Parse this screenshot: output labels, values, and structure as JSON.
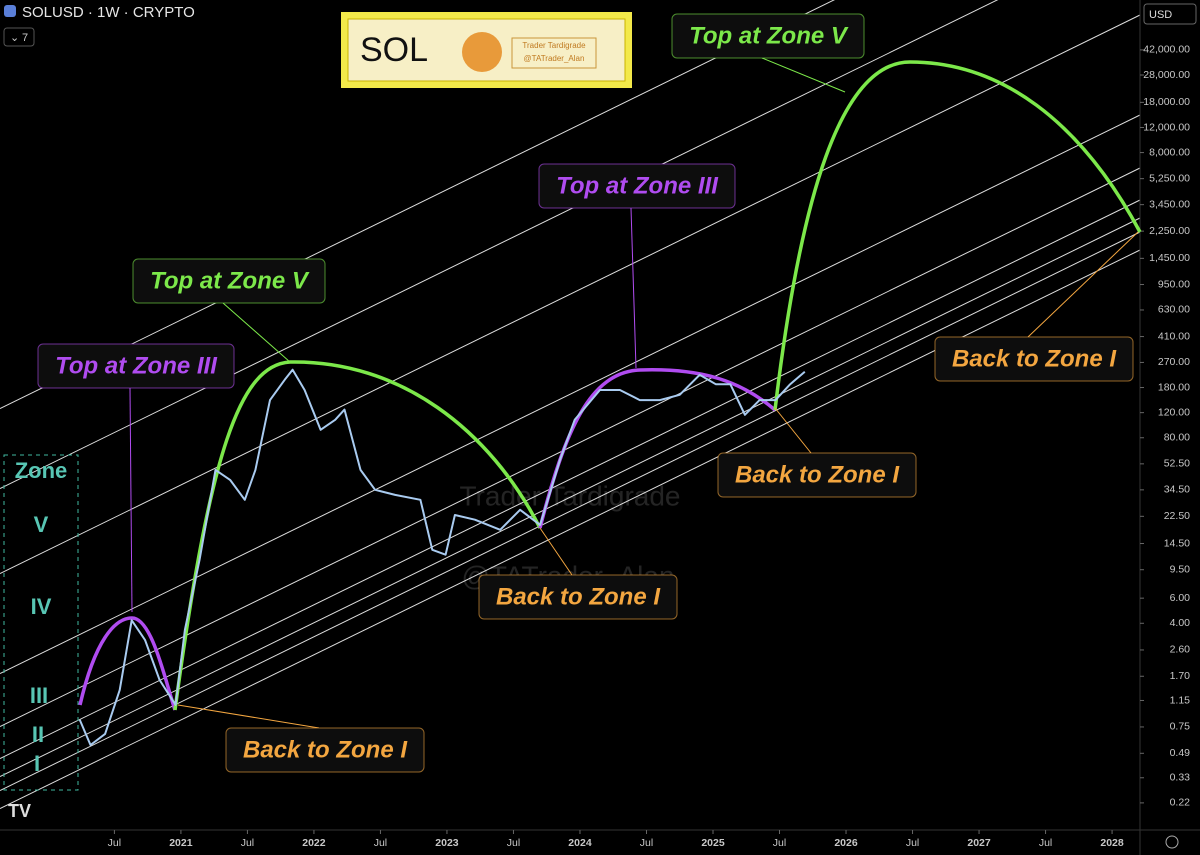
{
  "chart_data": {
    "type": "line",
    "header": {
      "symbol": "SOLUSD · 1W · CRYPTO",
      "indicator_count": "7",
      "currency": "USD"
    },
    "logo": {
      "symbol": "SOL",
      "author": "Trader Tardigrade",
      "handle": "@TATrader_Alan"
    },
    "watermark": [
      "Trader Tardigrade",
      "@TATrader_Alan"
    ],
    "zone_labels": [
      "Zone",
      "V",
      "IV",
      "III",
      "II",
      "I"
    ],
    "annotations": [
      {
        "text": "Top at Zone III",
        "color": "#b04cf0"
      },
      {
        "text": "Top at Zone V",
        "color": "#7ce84a"
      },
      {
        "text": "Back to Zone I",
        "color": "#f3a640"
      },
      {
        "text": "Back to Zone I",
        "color": "#f3a640"
      },
      {
        "text": "Top at Zone III",
        "color": "#b04cf0"
      },
      {
        "text": "Back to Zone I",
        "color": "#f3a640"
      },
      {
        "text": "Top at Zone V",
        "color": "#7ce84a"
      },
      {
        "text": "Back to Zone I",
        "color": "#f3a640"
      }
    ],
    "log_scale": true,
    "xlim": [
      2019.64,
      2028.21
    ],
    "ylim": [
      0.142,
      94000
    ],
    "xticks": [
      {
        "value": 2020.5,
        "label": "Jul"
      },
      2021,
      {
        "value": 2021.5,
        "label": "Jul"
      },
      2022,
      {
        "value": 2022.5,
        "label": "Jul"
      },
      2023,
      {
        "value": 2023.5,
        "label": "Jul"
      },
      2024,
      {
        "value": 2024.5,
        "label": "Jul"
      },
      2025,
      {
        "value": 2025.5,
        "label": "Jul"
      },
      2026,
      {
        "value": 2026.5,
        "label": "Jul"
      },
      2027,
      {
        "value": 2027.5,
        "label": "Jul"
      },
      2028
    ],
    "yticks": [
      {
        "value": 42000,
        "label": "42,000.00"
      },
      {
        "value": 28000,
        "label": "28,000.00"
      },
      {
        "value": 18000,
        "label": "18,000.00"
      },
      {
        "value": 12000,
        "label": "12,000.00"
      },
      {
        "value": 8000,
        "label": "8,000.00"
      },
      {
        "value": 5250,
        "label": "5,250.00"
      },
      {
        "value": 3450,
        "label": "3,450.00"
      },
      {
        "value": 2250,
        "label": "2,250.00"
      },
      {
        "value": 1450,
        "label": "1,450.00"
      },
      {
        "value": 950,
        "label": "950.00"
      },
      {
        "value": 630,
        "label": "630.00"
      },
      {
        "value": 410,
        "label": "410.00"
      },
      {
        "value": 270,
        "label": "270.00"
      },
      {
        "value": 180,
        "label": "180.00"
      },
      {
        "value": 120,
        "label": "120.00"
      },
      {
        "value": 80,
        "label": "80.00"
      },
      {
        "value": 52.5,
        "label": "52.50"
      },
      {
        "value": 34.5,
        "label": "34.50"
      },
      {
        "value": 22.5,
        "label": "22.50"
      },
      {
        "value": 14.5,
        "label": "14.50"
      },
      {
        "value": 9.5,
        "label": "9.50"
      },
      {
        "value": 6,
        "label": "6.00"
      },
      {
        "value": 4,
        "label": "4.00"
      },
      {
        "value": 2.6,
        "label": "2.60"
      },
      {
        "value": 1.7,
        "label": "1.70"
      },
      {
        "value": 1.15,
        "label": "1.15"
      },
      {
        "value": 0.75,
        "label": "0.75"
      },
      {
        "value": 0.49,
        "label": "0.49"
      },
      {
        "value": 0.33,
        "label": "0.33"
      },
      {
        "value": 0.22,
        "label": "0.22"
      }
    ],
    "x": [
      2020.24,
      2020.32,
      2020.43,
      2020.54,
      2020.63,
      2020.73,
      2020.84,
      2020.96,
      2021.03,
      2021.14,
      2021.26,
      2021.37,
      2021.48,
      2021.56,
      2021.67,
      2021.78,
      2021.84,
      2021.93,
      2022.05,
      2022.16,
      2022.23,
      2022.35,
      2022.46,
      2022.61,
      2022.8,
      2022.89,
      2022.99,
      2023.06,
      2023.21,
      2023.4,
      2023.55,
      2023.7,
      2023.85,
      2023.96,
      2024.15,
      2024.3,
      2024.45,
      2024.6,
      2024.75,
      2024.9,
      2025.02,
      2025.13,
      2025.24,
      2025.35,
      2025.47,
      2025.58,
      2025.69
    ],
    "series": [
      {
        "name": "SOLUSD",
        "color": "#a9cbf0",
        "values": [
          0.84,
          0.56,
          0.67,
          1.36,
          4.2,
          3.06,
          1.6,
          1.07,
          3.6,
          11.1,
          47.6,
          40.5,
          29.4,
          47.6,
          147,
          204,
          240,
          173,
          91,
          107,
          126,
          47.6,
          34.5,
          31.8,
          29.4,
          13.1,
          12.1,
          23,
          21.3,
          18.1,
          25,
          19.6,
          56,
          107,
          173,
          173,
          147,
          147,
          160,
          221,
          190,
          190,
          116,
          147,
          147,
          190,
          232
        ]
      }
    ]
  }
}
